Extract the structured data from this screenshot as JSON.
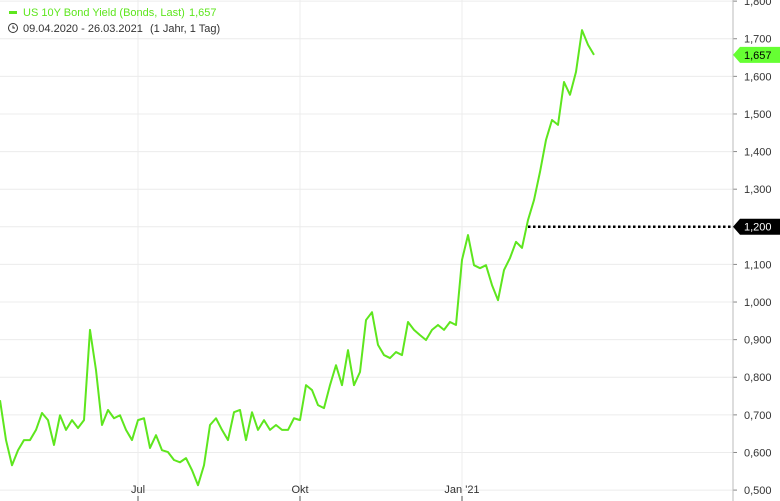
{
  "chart_data": {
    "type": "line",
    "legend_label": "US 10Y Bond Yield (Bonds, Last)",
    "date_range": "09.04.2020 - 26.03.2021",
    "period": "(1 Jahr, 1 Tag)",
    "categories": [
      null,
      null,
      null,
      null,
      null,
      null,
      null,
      null,
      null,
      null,
      null,
      null,
      null,
      null,
      null,
      null,
      null,
      null,
      null,
      null,
      null,
      null,
      null,
      "Jul",
      null,
      null,
      null,
      null,
      null,
      null,
      null,
      null,
      null,
      null,
      null,
      null,
      null,
      null,
      null,
      null,
      null,
      null,
      null,
      null,
      null,
      null,
      null,
      null,
      null,
      null,
      "Okt",
      null,
      null,
      null,
      null,
      null,
      null,
      null,
      null,
      null,
      null,
      null,
      null,
      null,
      null,
      null,
      null,
      null,
      null,
      null,
      null,
      null,
      null,
      null,
      null,
      null,
      null,
      "Jan '21",
      null,
      null,
      null,
      null,
      null,
      null,
      null,
      null,
      null,
      null,
      null,
      null,
      null,
      null,
      null,
      null,
      null,
      null,
      null,
      null,
      null,
      null
    ],
    "series": [
      {
        "name": "US 10Y Bond Yield",
        "color": "#5ee61e",
        "last_label": "1,657",
        "values": [
          0.739,
          0.633,
          0.566,
          0.606,
          0.633,
          0.633,
          0.66,
          0.705,
          0.686,
          0.62,
          0.699,
          0.66,
          0.686,
          0.665,
          0.686,
          0.926,
          0.819,
          0.673,
          0.713,
          0.691,
          0.699,
          0.66,
          0.633,
          0.686,
          0.691,
          0.612,
          0.646,
          0.606,
          0.601,
          0.58,
          0.574,
          0.585,
          0.553,
          0.513,
          0.566,
          0.673,
          0.691,
          0.66,
          0.633,
          0.707,
          0.713,
          0.633,
          0.707,
          0.66,
          0.686,
          0.66,
          0.673,
          0.66,
          0.66,
          0.691,
          0.686,
          0.779,
          0.766,
          0.726,
          0.718,
          0.779,
          0.832,
          0.779,
          0.872,
          0.779,
          0.814,
          0.952,
          0.973,
          0.886,
          0.859,
          0.851,
          0.867,
          0.859,
          0.947,
          0.926,
          0.912,
          0.899,
          0.926,
          0.939,
          0.926,
          0.947,
          0.939,
          1.112,
          1.178,
          1.098,
          1.09,
          1.098,
          1.045,
          1.005,
          1.085,
          1.117,
          1.16,
          1.144,
          1.218,
          1.271,
          1.346,
          1.431,
          1.484,
          1.471,
          1.585,
          1.551,
          1.612,
          1.723,
          1.684,
          1.657
        ]
      }
    ],
    "reference_line": {
      "value": 1.2,
      "label": "1,200"
    },
    "ylim": [
      0.471,
      1.803
    ],
    "yticks": [
      {
        "value": 0.5,
        "label": "0,500"
      },
      {
        "value": 0.6,
        "label": "0,600"
      },
      {
        "value": 0.7,
        "label": "0,700"
      },
      {
        "value": 0.8,
        "label": "0,800"
      },
      {
        "value": 0.9,
        "label": "0,900"
      },
      {
        "value": 1.0,
        "label": "1,000"
      },
      {
        "value": 1.1,
        "label": "1,100"
      },
      {
        "value": 1.2,
        "label": "1,200"
      },
      {
        "value": 1.3,
        "label": "1,300"
      },
      {
        "value": 1.4,
        "label": "1,400"
      },
      {
        "value": 1.5,
        "label": "1,500"
      },
      {
        "value": 1.6,
        "label": "1,600"
      },
      {
        "value": 1.7,
        "label": "1,700"
      },
      {
        "value": 1.8,
        "label": "1,800"
      }
    ],
    "grid": true
  }
}
